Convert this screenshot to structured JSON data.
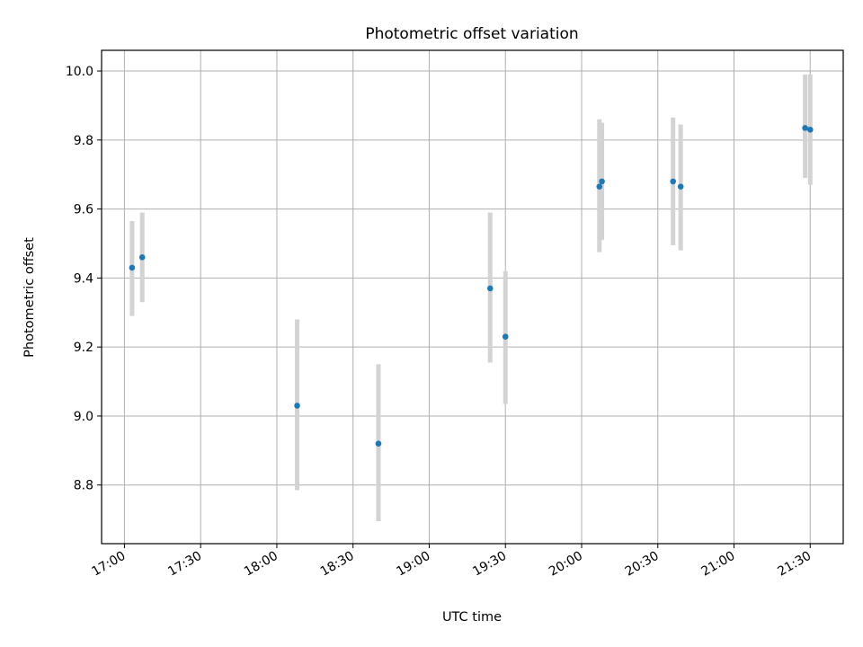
{
  "chart_data": {
    "type": "scatter",
    "title": "Photometric offset variation",
    "xlabel": "UTC time",
    "ylabel": "Photometric offset",
    "x_axis": {
      "kind": "time",
      "ticks": [
        "17:00",
        "17:30",
        "18:00",
        "18:30",
        "19:00",
        "19:30",
        "20:00",
        "20:30",
        "21:00",
        "21:30"
      ],
      "range": [
        "16:51",
        "21:43"
      ]
    },
    "y_axis": {
      "ticks": [
        "8.8",
        "9.0",
        "9.2",
        "9.4",
        "9.6",
        "9.8",
        "10.0"
      ],
      "range": [
        8.63,
        10.06
      ]
    },
    "grid": true,
    "colors": {
      "marker": "#1f77b4",
      "errorbar": "#d3d3d3",
      "grid": "#b0b0b0"
    },
    "series": [
      {
        "points": [
          {
            "x": "17:03",
            "y": 9.43,
            "ylow": 9.29,
            "yhigh": 9.565
          },
          {
            "x": "17:07",
            "y": 9.46,
            "ylow": 9.33,
            "yhigh": 9.59
          },
          {
            "x": "18:08",
            "y": 9.03,
            "ylow": 8.785,
            "yhigh": 9.28
          },
          {
            "x": "18:40",
            "y": 8.92,
            "ylow": 8.695,
            "yhigh": 9.15
          },
          {
            "x": "19:24",
            "y": 9.37,
            "ylow": 9.155,
            "yhigh": 9.59
          },
          {
            "x": "19:30",
            "y": 9.23,
            "ylow": 9.035,
            "yhigh": 9.42
          },
          {
            "x": "20:07",
            "y": 9.665,
            "ylow": 9.475,
            "yhigh": 9.86
          },
          {
            "x": "20:08",
            "y": 9.68,
            "ylow": 9.51,
            "yhigh": 9.85
          },
          {
            "x": "20:36",
            "y": 9.68,
            "ylow": 9.495,
            "yhigh": 9.865
          },
          {
            "x": "20:39",
            "y": 9.665,
            "ylow": 9.48,
            "yhigh": 9.845
          },
          {
            "x": "21:28",
            "y": 9.835,
            "ylow": 9.69,
            "yhigh": 9.99
          },
          {
            "x": "21:30",
            "y": 9.83,
            "ylow": 9.67,
            "yhigh": 9.99
          }
        ]
      }
    ]
  }
}
